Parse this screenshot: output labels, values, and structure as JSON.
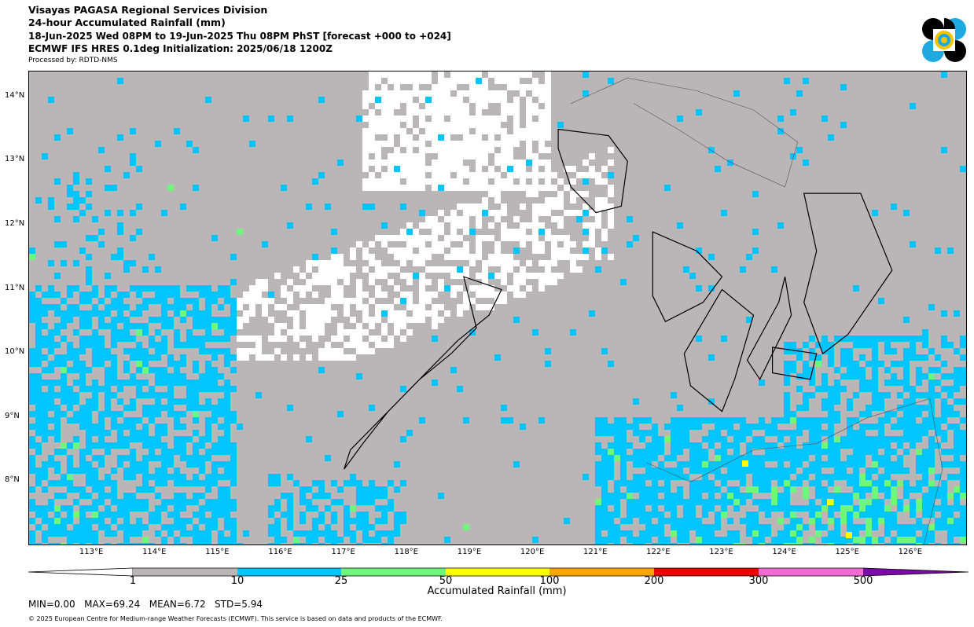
{
  "header": {
    "line1": "Visayas PAGASA Regional Services Division",
    "line2": "24-hour Accumulated Rainfall (mm)",
    "line3": "18-Jun-2025 Wed 08PM to 19-Jun-2025 Thu 08PM PhST [forecast +000 to +024]",
    "line4": "ECMWF IFS HRES 0.1deg Initialization: 2025/06/18 1200Z",
    "line5": "Processed by: RDTD-NMS"
  },
  "logo": {
    "name": "pagasa-logo",
    "colors": [
      "#000000",
      "#1fa9e1",
      "#f2c500"
    ]
  },
  "map": {
    "lon_range": [
      112.0,
      126.9
    ],
    "lat_range": [
      7.0,
      14.4
    ],
    "lat_labels": [
      "14°N",
      "13°N",
      "12°N",
      "11°N",
      "10°N",
      "9°N",
      "8°N"
    ],
    "lat_values": [
      14,
      13,
      12,
      11,
      10,
      9,
      8
    ],
    "lon_labels": [
      "113°E",
      "114°E",
      "115°E",
      "116°E",
      "117°E",
      "118°E",
      "119°E",
      "120°E",
      "121°E",
      "122°E",
      "123°E",
      "124°E",
      "125°E",
      "126°E"
    ],
    "lon_values": [
      113,
      114,
      115,
      116,
      117,
      118,
      119,
      120,
      121,
      122,
      123,
      124,
      125,
      126
    ],
    "background_class_color": "#bab6b7",
    "dry_color": "#ffffff"
  },
  "colorbar": {
    "title": "Accumulated Rainfall (mm)",
    "ticks": [
      "1",
      "10",
      "25",
      "50",
      "100",
      "200",
      "300",
      "500"
    ],
    "colors": [
      "#ffffff",
      "#bab6b7",
      "#00c5ff",
      "#6ef77a",
      "#ffff00",
      "#ffa500",
      "#ec0000",
      "#f26bd5",
      "#7c0aa8"
    ]
  },
  "stats": {
    "text": "MIN=0.00   MAX=69.24   MEAN=6.72   STD=5.94"
  },
  "copyright": "© 2025 European Centre for Medium-range Weather Forecasts (ECMWF). This service is based on data and products of the ECMWF."
}
